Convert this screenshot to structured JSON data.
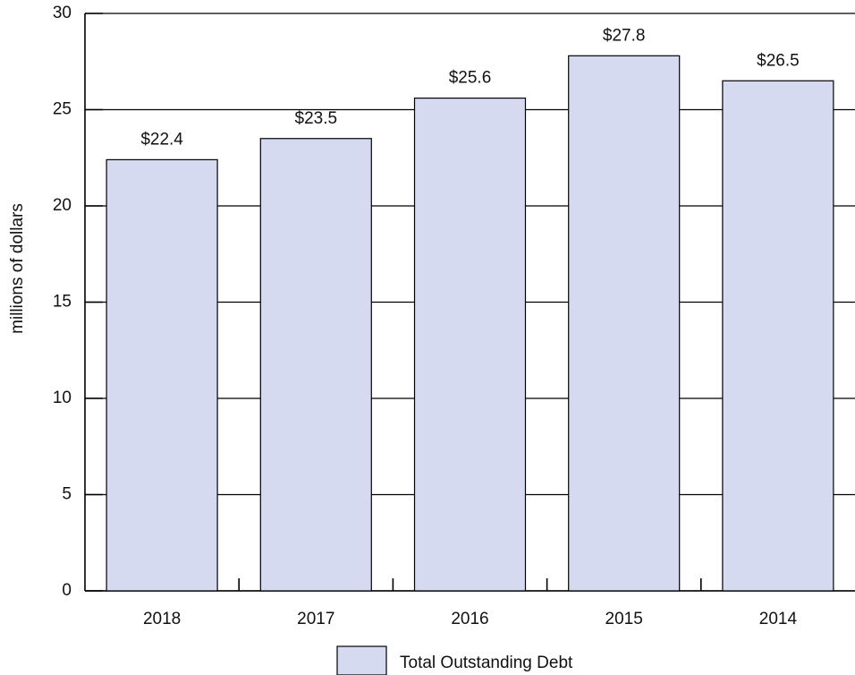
{
  "chart_data": {
    "type": "bar",
    "y_axis_label": "millions of dollars",
    "categories": [
      "2018",
      "2017",
      "2016",
      "2015",
      "2014"
    ],
    "series": [
      {
        "name": "Total Outstanding Debt",
        "color": "#d5daf0",
        "values": [
          22.4,
          23.5,
          25.6,
          27.8,
          26.5
        ],
        "value_labels": [
          "$22.4",
          "$23.5",
          "$25.6",
          "$27.8",
          "$26.5"
        ]
      }
    ],
    "ylim": [
      0,
      30
    ],
    "yticks": [
      0,
      5,
      10,
      15,
      20,
      25,
      30
    ],
    "grid": true
  }
}
